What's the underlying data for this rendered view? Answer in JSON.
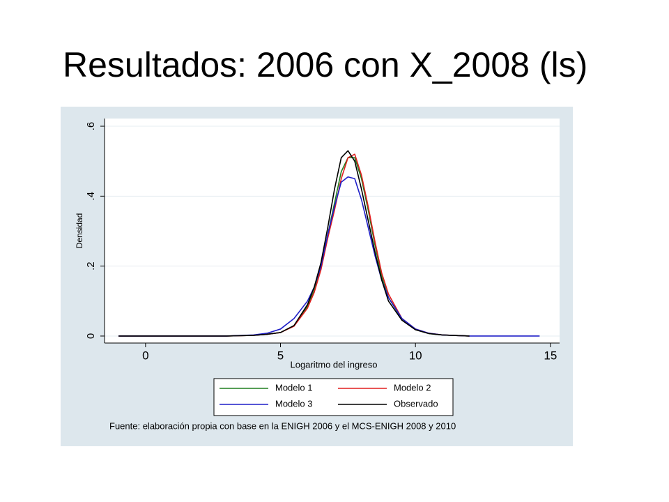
{
  "chart_data": {
    "type": "line",
    "title": "Resultados: 2006 con X_2008 (ls)",
    "x_label": "Logaritmo del ingreso",
    "y_label": "Densidad",
    "note": "Fuente: elaboración propia con base en la ENIGH 2006 y el MCS-ENIGH 2008 y 2010",
    "x": [
      -1,
      0,
      1,
      2,
      3,
      4,
      4.5,
      5,
      5.5,
      6,
      6.25,
      6.5,
      6.75,
      7,
      7.25,
      7.5,
      7.75,
      8,
      8.25,
      8.5,
      8.75,
      9,
      9.5,
      10,
      10.5,
      11,
      12,
      13,
      14,
      14.6
    ],
    "series": [
      {
        "name": "Modelo 1",
        "color": "#1f7f1f",
        "values": [
          0,
          0,
          0,
          0,
          0,
          0.002,
          0.005,
          0.01,
          0.03,
          0.085,
          0.13,
          0.2,
          0.29,
          0.38,
          0.47,
          0.51,
          0.51,
          0.45,
          0.36,
          0.26,
          0.17,
          0.11,
          0.048,
          0.019,
          0.007,
          0.003,
          0,
          null,
          null,
          null
        ]
      },
      {
        "name": "Modelo 2",
        "color": "#e01e1e",
        "values": [
          0,
          0,
          0,
          0,
          0,
          0.002,
          0.005,
          0.01,
          0.028,
          0.08,
          0.125,
          0.19,
          0.28,
          0.36,
          0.45,
          0.51,
          0.52,
          0.46,
          0.37,
          0.27,
          0.18,
          0.12,
          0.05,
          0.02,
          0.008,
          0.003,
          0,
          null,
          null,
          null
        ]
      },
      {
        "name": "Modelo 3",
        "color": "#1e1ec8",
        "values": [
          0,
          0,
          0,
          0,
          0,
          0.003,
          0.008,
          0.02,
          0.05,
          0.1,
          0.14,
          0.2,
          0.29,
          0.37,
          0.44,
          0.455,
          0.45,
          0.39,
          0.31,
          0.23,
          0.16,
          0.11,
          0.05,
          0.02,
          0.008,
          0.003,
          0,
          0,
          0,
          0
        ]
      },
      {
        "name": "Observado",
        "color": "#000000",
        "values": [
          0,
          0,
          0,
          0,
          0,
          0.002,
          0.005,
          0.01,
          0.03,
          0.09,
          0.14,
          0.21,
          0.31,
          0.42,
          0.51,
          0.53,
          0.5,
          0.42,
          0.33,
          0.24,
          0.16,
          0.1,
          0.045,
          0.018,
          0.007,
          0.003,
          0,
          null,
          null,
          null
        ]
      }
    ],
    "xlim": [
      -1.52,
      15.34
    ],
    "ylim": [
      -0.02,
      0.622
    ],
    "xticks": [
      0,
      5,
      10,
      15
    ],
    "yticks": [
      0,
      {
        "value": 0.2,
        "label": ".2"
      },
      {
        "value": 0.4,
        "label": ".4"
      },
      {
        "value": 0.6,
        "label": ".6"
      }
    ],
    "grid": true,
    "legend": "bottom"
  }
}
